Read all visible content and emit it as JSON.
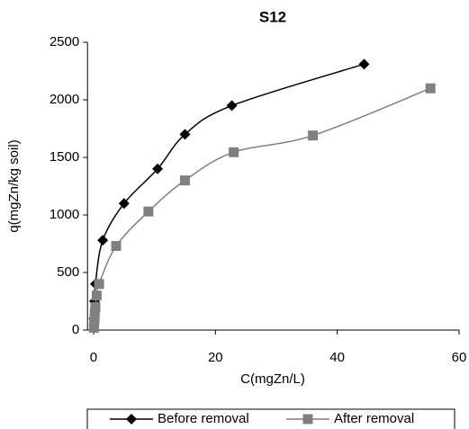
{
  "chart_data": {
    "type": "line",
    "title": "S12",
    "x_label": "C(mgZn/L)",
    "y_label": "q(mgZn/kg soil)",
    "xlim": [
      -1,
      60
    ],
    "xticks": [
      0,
      20,
      40,
      60
    ],
    "ylim": [
      0,
      2500
    ],
    "yticks": [
      0,
      500,
      1000,
      1500,
      2000,
      2500
    ],
    "legend": "bottom",
    "series": [
      {
        "name": "Before removal",
        "color": "#000000",
        "marker": "diamond",
        "x": [
          0.05,
          0.15,
          0.3,
          1.5,
          5,
          10.5,
          15,
          22.7,
          44.4
        ],
        "values": [
          100,
          250,
          400,
          780,
          1100,
          1400,
          1700,
          1950,
          2310
        ]
      },
      {
        "name": "After removal",
        "color": "#808080",
        "marker": "square",
        "x": [
          0.05,
          0.1,
          0.15,
          0.2,
          0.3,
          0.5,
          0.9,
          3.7,
          9,
          15,
          23,
          36,
          55.3
        ],
        "values": [
          20,
          60,
          100,
          150,
          200,
          300,
          400,
          730,
          1030,
          1300,
          1545,
          1690,
          2100
        ]
      }
    ]
  }
}
